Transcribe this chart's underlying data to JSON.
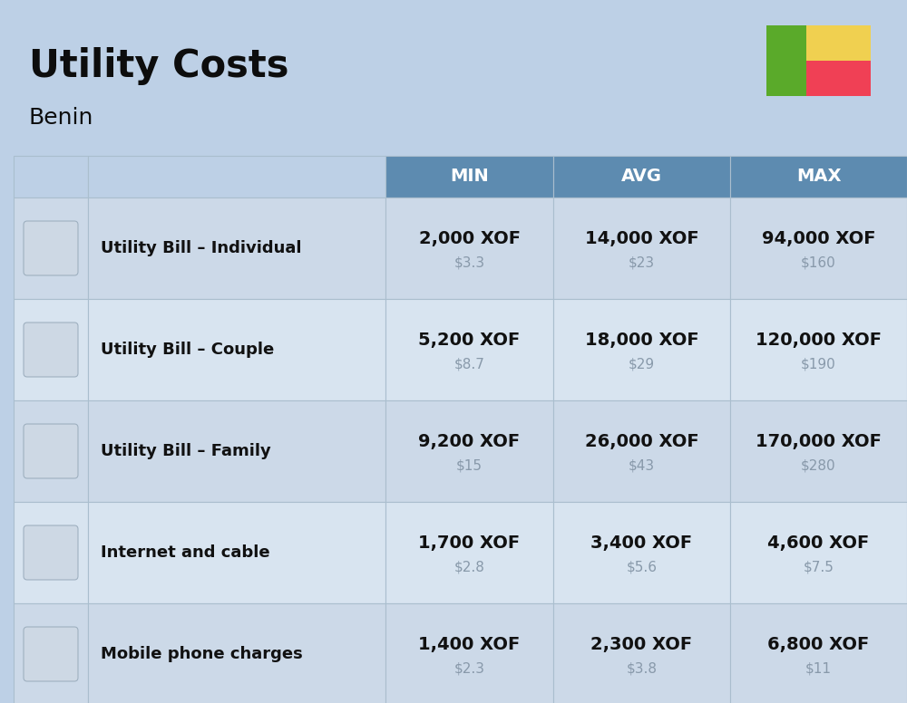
{
  "title": "Utility Costs",
  "subtitle": "Benin",
  "background_color": "#bdd0e6",
  "header_bg_color": "#5d8bb0",
  "header_text_color": "#ffffff",
  "row_bg_color_odd": "#ccd9e8",
  "row_bg_color_even": "#d8e4f0",
  "cell_border_color": "#aabece",
  "columns": [
    "MIN",
    "AVG",
    "MAX"
  ],
  "rows": [
    {
      "label": "Utility Bill – Individual",
      "min_xof": "2,000 XOF",
      "min_usd": "$3.3",
      "avg_xof": "14,000 XOF",
      "avg_usd": "$23",
      "max_xof": "94,000 XOF",
      "max_usd": "$160"
    },
    {
      "label": "Utility Bill – Couple",
      "min_xof": "5,200 XOF",
      "min_usd": "$8.7",
      "avg_xof": "18,000 XOF",
      "avg_usd": "$29",
      "max_xof": "120,000 XOF",
      "max_usd": "$190"
    },
    {
      "label": "Utility Bill – Family",
      "min_xof": "9,200 XOF",
      "min_usd": "$15",
      "avg_xof": "26,000 XOF",
      "avg_usd": "$43",
      "max_xof": "170,000 XOF",
      "max_usd": "$280"
    },
    {
      "label": "Internet and cable",
      "min_xof": "1,700 XOF",
      "min_usd": "$2.8",
      "avg_xof": "3,400 XOF",
      "avg_usd": "$5.6",
      "max_xof": "4,600 XOF",
      "max_usd": "$7.5"
    },
    {
      "label": "Mobile phone charges",
      "min_xof": "1,400 XOF",
      "min_usd": "$2.3",
      "avg_xof": "2,300 XOF",
      "avg_usd": "$3.8",
      "max_xof": "6,800 XOF",
      "max_usd": "$11"
    }
  ],
  "flag_green": "#5aaa2a",
  "flag_yellow": "#f0d050",
  "flag_red": "#f04055",
  "title_fontsize": 30,
  "subtitle_fontsize": 18,
  "header_fontsize": 14,
  "label_fontsize": 13,
  "value_fontsize": 14,
  "usd_fontsize": 11,
  "usd_color": "#8899aa",
  "label_color": "#111111",
  "value_color": "#111111"
}
